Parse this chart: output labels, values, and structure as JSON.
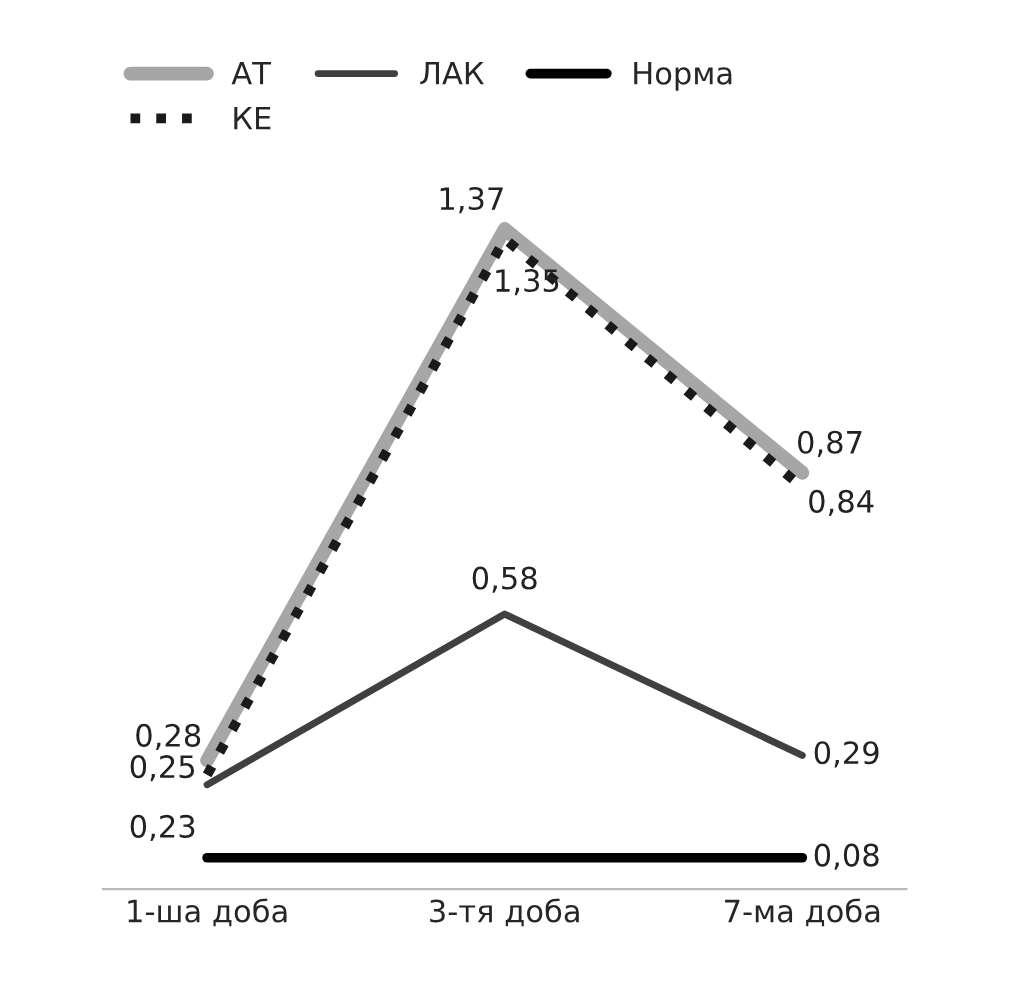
{
  "chart_data": {
    "type": "line",
    "categories": [
      "1-ша доба",
      "3-тя доба",
      "7-ма доба"
    ],
    "series": [
      {
        "name": "АТ",
        "color": "#a6a6a6",
        "values": [
          0.28,
          1.37,
          0.87
        ],
        "value_labels": [
          "0,28",
          "1,37",
          "0,87"
        ],
        "line_style": "solid"
      },
      {
        "name": "КЕ",
        "color": "#1a1a1a",
        "values": [
          0.25,
          1.35,
          0.84
        ],
        "value_labels": [
          "0,25",
          "1,35",
          "0,84"
        ],
        "line_style": "dotted"
      },
      {
        "name": "ЛАК",
        "color": "#404040",
        "values": [
          0.23,
          0.58,
          0.29
        ],
        "value_labels": [
          "0,23",
          "0,58",
          "0,29"
        ],
        "line_style": "solid"
      },
      {
        "name": "Норма",
        "color": "#000000",
        "values": [
          0.08,
          0.08,
          0.08
        ],
        "value_labels": [
          null,
          null,
          "0,08"
        ],
        "line_style": "solid"
      }
    ],
    "legend": "top",
    "grid": false,
    "marker": "none"
  }
}
